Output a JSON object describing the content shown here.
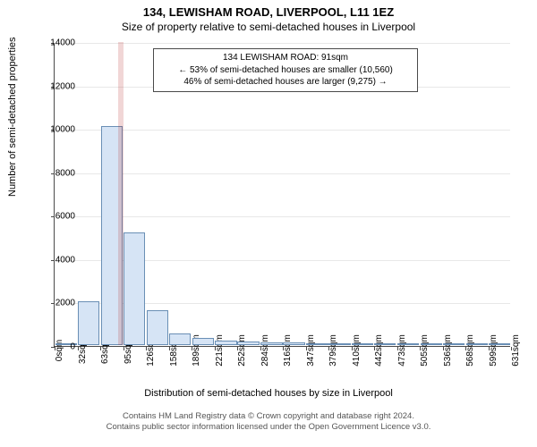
{
  "title_main": "134, LEWISHAM ROAD, LIVERPOOL, L11 1EZ",
  "title_sub": "Size of property relative to semi-detached houses in Liverpool",
  "ylabel": "Number of semi-detached properties",
  "xlabel": "Distribution of semi-detached houses by size in Liverpool",
  "infobox": {
    "line1": "134 LEWISHAM ROAD: 91sqm",
    "line2": "← 53% of semi-detached houses are smaller (10,560)",
    "line3": "46% of semi-detached houses are larger (9,275) →"
  },
  "footer": {
    "line1": "Contains HM Land Registry data © Crown copyright and database right 2024.",
    "line2": "Contains public sector information licensed under the Open Government Licence v3.0."
  },
  "chart": {
    "type": "histogram",
    "ymax": 14000,
    "ytick_step": 2000,
    "yticks": [
      0,
      2000,
      4000,
      6000,
      8000,
      10000,
      12000,
      14000
    ],
    "xticks": [
      "0sqm",
      "32sqm",
      "63sqm",
      "95sqm",
      "126sqm",
      "158sqm",
      "189sqm",
      "221sqm",
      "252sqm",
      "284sqm",
      "316sqm",
      "347sqm",
      "379sqm",
      "410sqm",
      "442sqm",
      "473sqm",
      "505sqm",
      "536sqm",
      "568sqm",
      "599sqm",
      "631sqm"
    ],
    "highlight_value_sqm": 91,
    "xmax_sqm": 631,
    "bar_color": "#d6e4f5",
    "bar_border": "#6a8fb5",
    "grid_color": "#e8e8e8",
    "axis_color": "#4a4a4a",
    "highlight_color": "rgba(180,30,30,0.18)",
    "background_color": "#ffffff",
    "bars": [
      {
        "x_sqm": 16,
        "count": 50
      },
      {
        "x_sqm": 47,
        "count": 2000
      },
      {
        "x_sqm": 79,
        "count": 10100
      },
      {
        "x_sqm": 110,
        "count": 5200
      },
      {
        "x_sqm": 142,
        "count": 1600
      },
      {
        "x_sqm": 173,
        "count": 550
      },
      {
        "x_sqm": 205,
        "count": 320
      },
      {
        "x_sqm": 237,
        "count": 200
      },
      {
        "x_sqm": 268,
        "count": 160
      },
      {
        "x_sqm": 300,
        "count": 130
      },
      {
        "x_sqm": 331,
        "count": 120
      },
      {
        "x_sqm": 363,
        "count": 30
      },
      {
        "x_sqm": 394,
        "count": 15
      },
      {
        "x_sqm": 426,
        "count": 10
      },
      {
        "x_sqm": 457,
        "count": 8
      },
      {
        "x_sqm": 489,
        "count": 5
      },
      {
        "x_sqm": 521,
        "count": 5
      },
      {
        "x_sqm": 552,
        "count": 3
      },
      {
        "x_sqm": 584,
        "count": 3
      },
      {
        "x_sqm": 615,
        "count": 2
      }
    ],
    "bar_width_sqm": 30,
    "title_fontsize": 13,
    "subtitle_fontsize": 12,
    "label_fontsize": 11,
    "tick_fontsize": 10
  }
}
